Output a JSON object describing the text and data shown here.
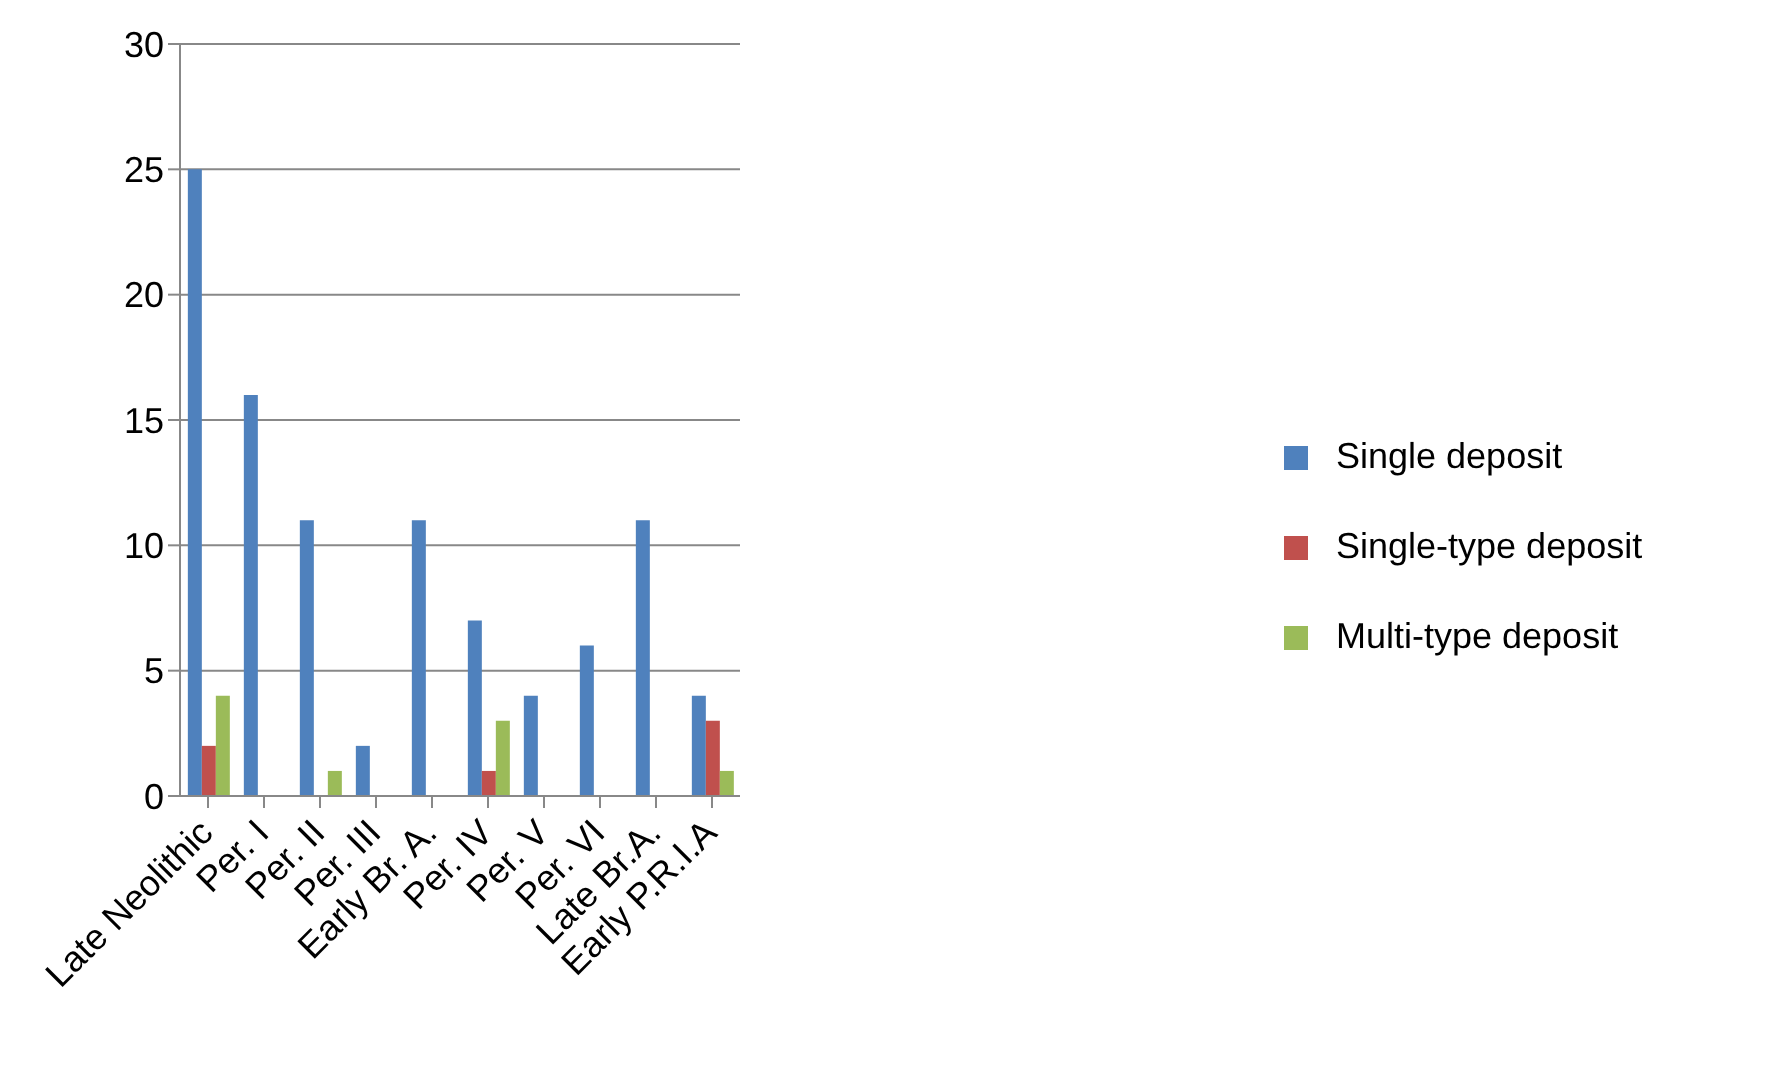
{
  "chart_data": {
    "type": "bar",
    "categories": [
      "Late Neolithic",
      "Per. I",
      "Per. II",
      "Per. III",
      "Early Br. A.",
      "Per. IV",
      "Per. V",
      "Per. VI",
      "Late Br.A.",
      "Early P.R.I.A"
    ],
    "series": [
      {
        "name": "Single deposit",
        "color": "#4f81bd",
        "values": [
          25,
          16,
          11,
          2,
          11,
          7,
          4,
          6,
          11,
          4
        ]
      },
      {
        "name": "Single-type deposit",
        "color": "#c0504d",
        "values": [
          2,
          0,
          0,
          0,
          0,
          1,
          0,
          0,
          0,
          3
        ]
      },
      {
        "name": "Multi-type deposit",
        "color": "#9bbb59",
        "values": [
          4,
          0,
          1,
          0,
          0,
          3,
          0,
          0,
          0,
          1
        ]
      }
    ],
    "ylim": [
      0,
      30
    ],
    "yticks": [
      0,
      5,
      10,
      15,
      20,
      25,
      30
    ],
    "grid": "y",
    "legend": "right"
  }
}
